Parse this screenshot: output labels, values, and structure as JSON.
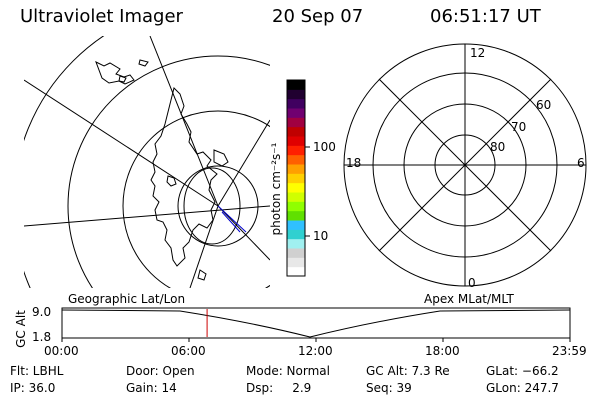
{
  "header": {
    "title": "Ultraviolet Imager",
    "date": "20 Sep 07",
    "time": "06:51:17 UT"
  },
  "colorbar": {
    "unit_label": "photon cm⁻²s⁻¹",
    "tick_high": "100",
    "tick_low": "10",
    "colors": [
      "#ffffff",
      "#e8e8e8",
      "#d0d0d0",
      "#a0f0f0",
      "#30d0d0",
      "#30c0ff",
      "#60e000",
      "#90ff00",
      "#d0ff00",
      "#ffff00",
      "#ffd000",
      "#ffa000",
      "#ff6000",
      "#ff2000",
      "#e00000",
      "#c00000",
      "#a00040",
      "#700070",
      "#400060",
      "#200030",
      "#000000"
    ]
  },
  "polar_grid": {
    "top_label": "12",
    "bottom_label": "0",
    "left_label": "18",
    "right_label": "6",
    "lat_labels": [
      "60",
      "70",
      "80"
    ]
  },
  "timeline": {
    "y_axis_label": "GC Alt",
    "y_ticks": [
      "9.0",
      "1.8"
    ],
    "left_caption": "Geographic Lat/Lon",
    "right_caption": "Apex MLat/MLT",
    "x_ticks": [
      "00:00",
      "06:00",
      "12:00",
      "18:00",
      "23:59"
    ],
    "current_time_fraction": 0.2856
  },
  "info": {
    "flt": "Flt: LBHL",
    "ip": "IP: 36.0",
    "door": "Door: Open",
    "gain": "Gain: 14",
    "mode": "Mode: Normal",
    "dsp": "Dsp:     2.9",
    "gc_alt": "GC Alt: 7.3 Re",
    "seq": "Seq: 39",
    "glat": "GLat: −66.2",
    "glon": "GLon: 247.7"
  }
}
